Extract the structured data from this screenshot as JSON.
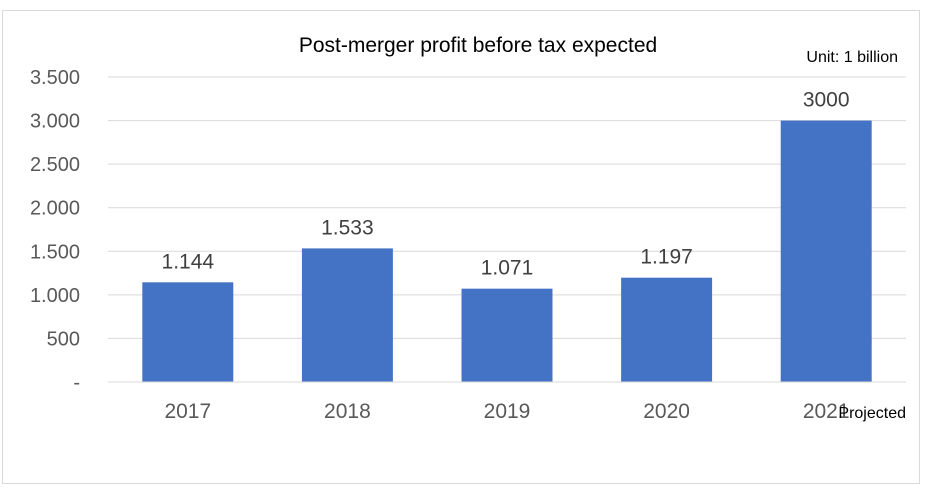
{
  "chart_data": {
    "type": "bar",
    "title": "Post-merger profit before tax expected",
    "unit_label": "Unit: 1 billion",
    "note": "Projected",
    "categories": [
      "2017",
      "2018",
      "2019",
      "2020",
      "2021"
    ],
    "values": [
      1144,
      1533,
      1071,
      1197,
      3000
    ],
    "data_labels": [
      "1.144",
      "1.533",
      "1.071",
      "1.197",
      "3000"
    ],
    "ylim": [
      0,
      3500
    ],
    "yticks": [
      0,
      500,
      1000,
      1500,
      2000,
      2500,
      3000,
      3500
    ],
    "ytick_labels": [
      "-",
      "500",
      "1.000",
      "1.500",
      "2.000",
      "2.500",
      "3.000",
      "3.500"
    ],
    "bar_color": "#4472C4",
    "grid": true
  }
}
